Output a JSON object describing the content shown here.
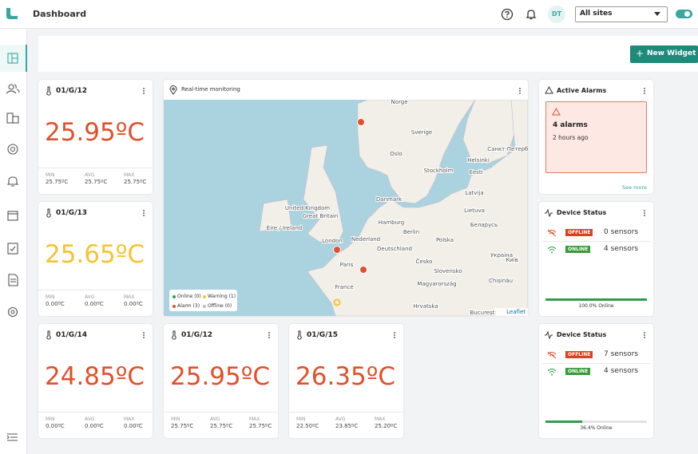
{
  "header": {
    "title": "Dashboard",
    "avatar": "DT",
    "site_select": "All sites"
  },
  "toolbar": {
    "button": "New Widget"
  },
  "temperature_cards": [
    {
      "id": "01/G/12",
      "value": "25.95ºC",
      "color": "#e0502a",
      "stats": [
        {
          "label": "MIN",
          "value": "25.75ºC"
        },
        {
          "label": "AVG",
          "value": "25.75ºC"
        },
        {
          "label": "MAX",
          "value": "25.75ºC"
        }
      ]
    },
    {
      "id": "01/G/13",
      "value": "25.65ºC",
      "color": "#f5c431",
      "stats": [
        {
          "label": "MIN",
          "value": "0.00ºC"
        },
        {
          "label": "AVG",
          "value": "0.00ºC"
        },
        {
          "label": "MAX",
          "value": "0.00ºC"
        }
      ]
    },
    {
      "id": "01/G/14",
      "value": "24.85ºC",
      "color": "#e0502a",
      "stats": [
        {
          "label": "MIN",
          "value": "0.00ºC"
        },
        {
          "label": "AVG",
          "value": "0.00ºC"
        },
        {
          "label": "MAX",
          "value": "0.00ºC"
        }
      ]
    },
    {
      "id": "01/G/12",
      "value": "25.95ºC",
      "color": "#e0502a",
      "stats": [
        {
          "label": "MIN",
          "value": "25.75ºC"
        },
        {
          "label": "AVG",
          "value": "25.75ºC"
        },
        {
          "label": "MAX",
          "value": "25.75ºC"
        }
      ]
    },
    {
      "id": "01/G/15",
      "value": "26.35ºC",
      "color": "#e0502a",
      "stats": [
        {
          "label": "MIN",
          "value": "22.50ºC"
        },
        {
          "label": "AVG",
          "value": "23.85ºC"
        },
        {
          "label": "MAX",
          "value": "25.20ºC"
        }
      ]
    }
  ],
  "map": {
    "title": "Real-time monitoring",
    "attribution": "Leaflet",
    "labels": [
      "Norge",
      "Sverige",
      "Oslo",
      "Stockholm",
      "Helsinki",
      "Санкт-Петербург",
      "Eesti",
      "Latvija",
      "Lietuva",
      "Danmark",
      "United Kingdom",
      "Great Britain",
      "Éire / Ireland",
      "Hamburg",
      "Berlin",
      "Nederland",
      "London",
      "Polska",
      "Беларусь",
      "Deutschland",
      "Paris",
      "Česko",
      "Україна",
      "Slovensko",
      "Київ",
      "France",
      "Magyarország",
      "Chișinău",
      "Hrvatska",
      "București"
    ],
    "legend": [
      {
        "text": "Online (0)",
        "color": "#2e9e4a"
      },
      {
        "text": "Warning (1)",
        "color": "#f5c431"
      },
      {
        "text": "Alarm (3)",
        "color": "#e0502a"
      },
      {
        "text": "Offline (0)",
        "color": "#bbbbbb"
      }
    ]
  },
  "alarms": {
    "title": "Active Alarms",
    "count": "4 alarms",
    "time": "2 hours ago",
    "link": "See more"
  },
  "device_status": [
    {
      "title": "Device Status",
      "rows": [
        {
          "badge": "OFFLINE",
          "count": "0 sensors"
        },
        {
          "badge": "ONLINE",
          "count": "4 sensors"
        }
      ],
      "online_percent": 100.0,
      "online_label": "100.0% Online"
    },
    {
      "title": "Device Status",
      "rows": [
        {
          "badge": "OFFLINE",
          "count": "7 sensors"
        },
        {
          "badge": "ONLINE",
          "count": "4 sensors"
        }
      ],
      "online_percent": 36.4,
      "online_label": "36.4% Online"
    }
  ]
}
